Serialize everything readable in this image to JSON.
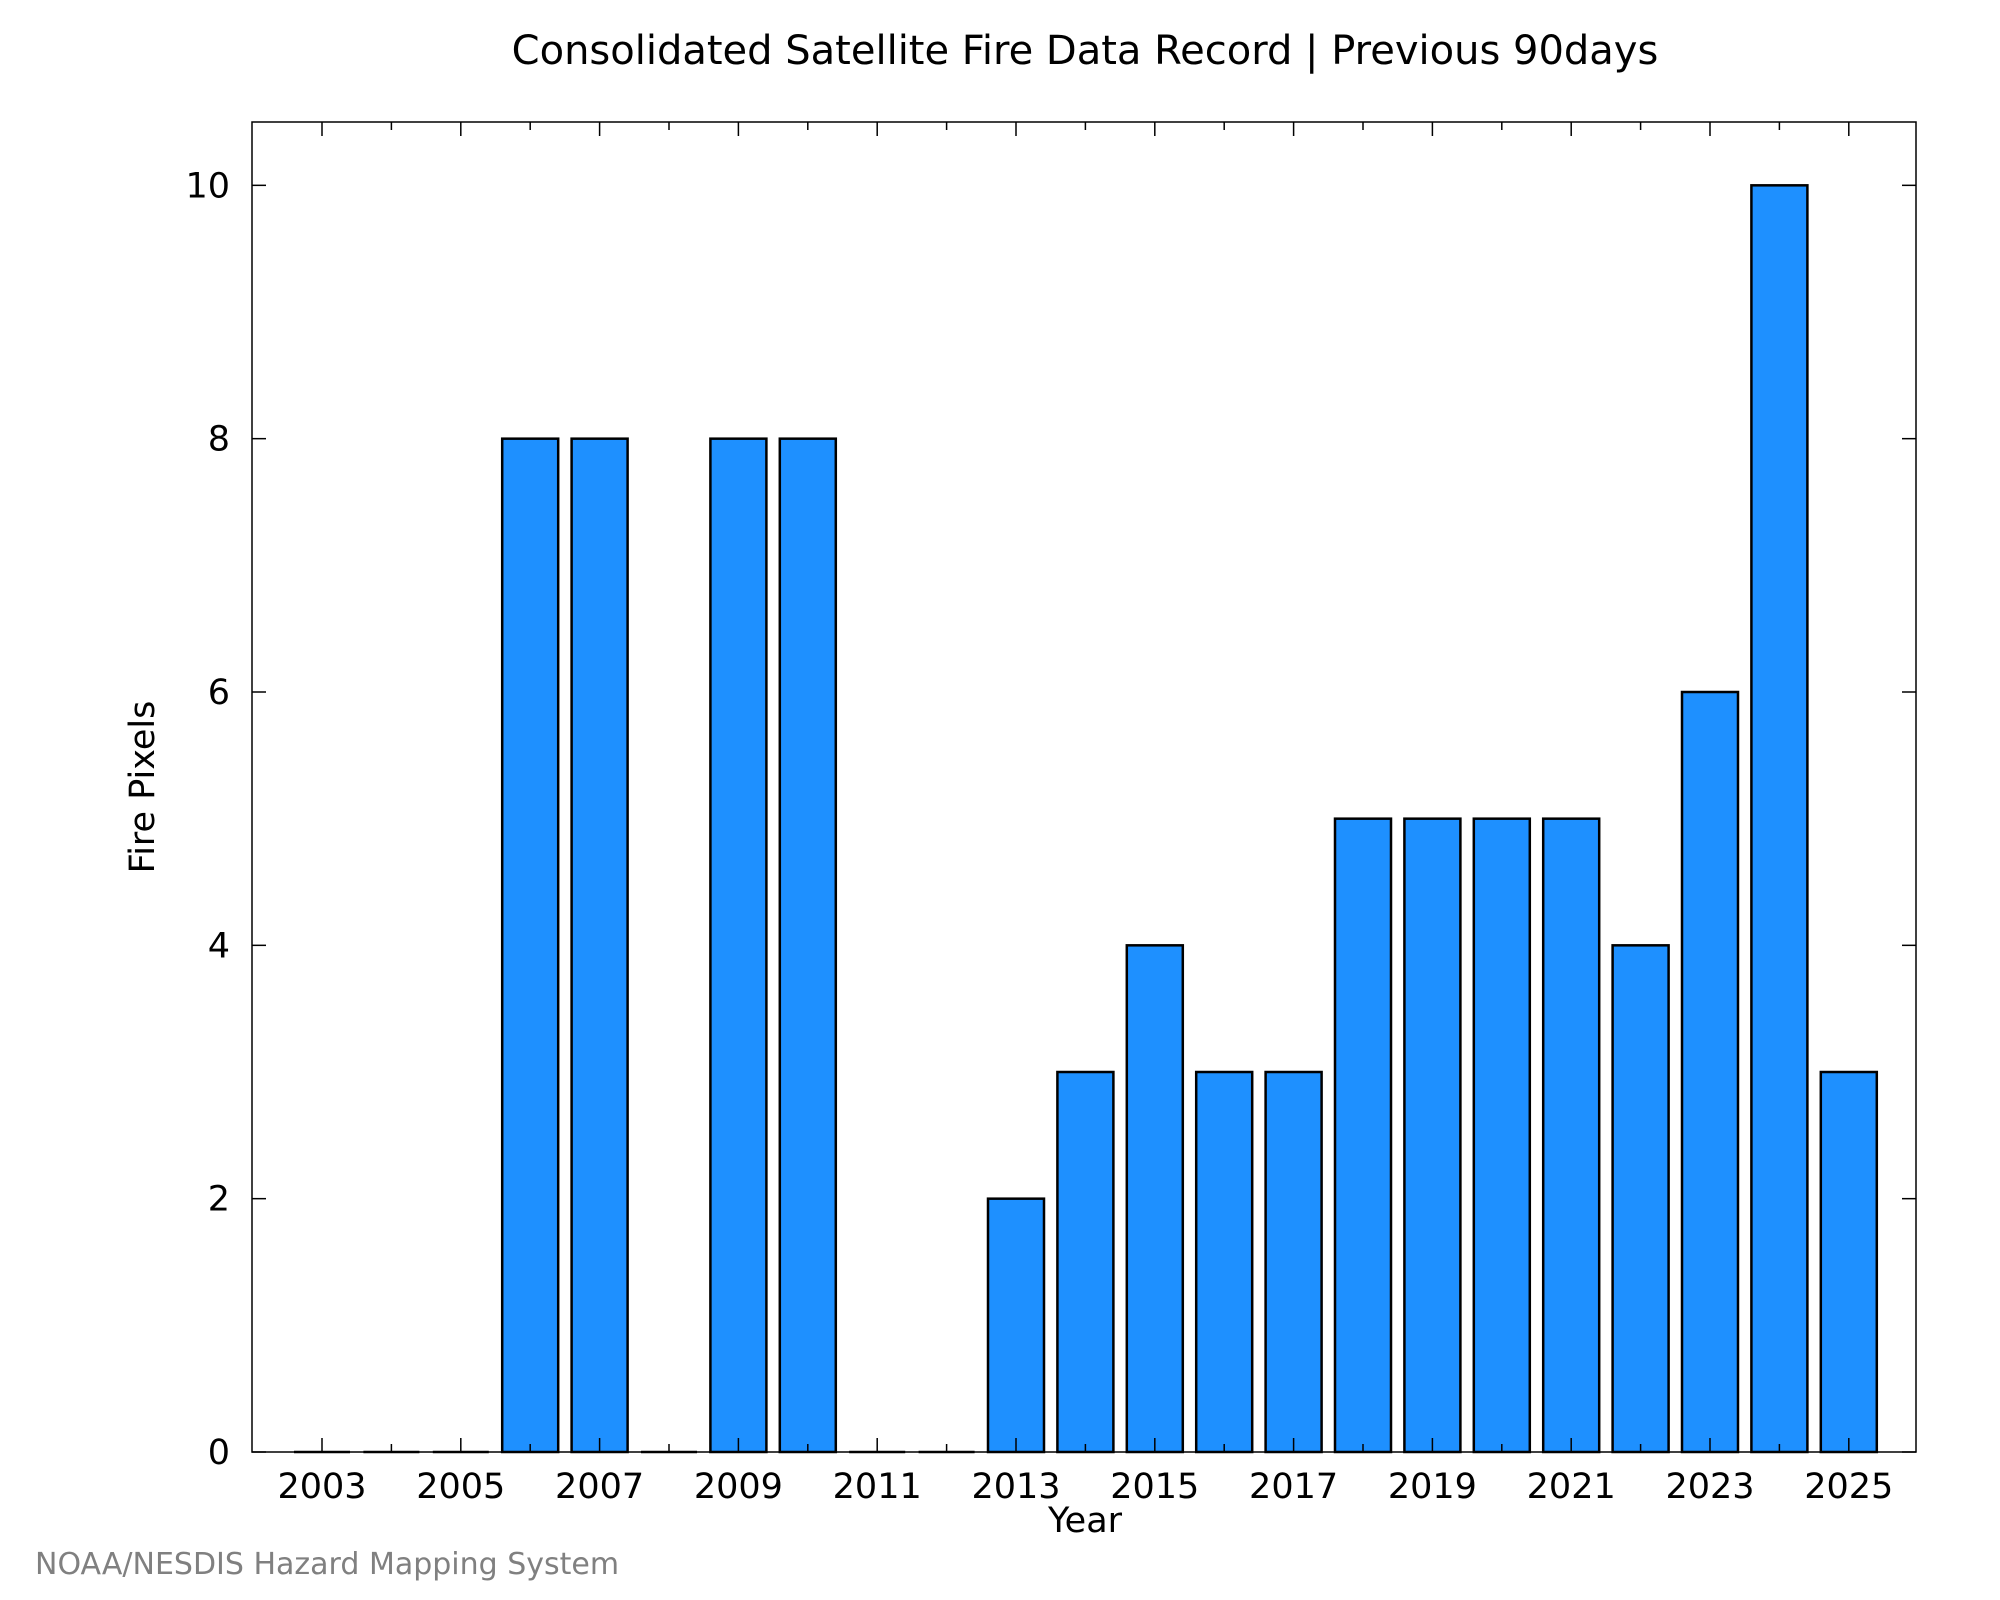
{
  "chart_data": {
    "type": "bar",
    "title": "Consolidated Satellite Fire Data Record | Previous 90days",
    "xlabel": "Year",
    "ylabel": "Fire Pixels",
    "categories": [
      "2003",
      "2004",
      "2005",
      "2006",
      "2007",
      "2008",
      "2009",
      "2010",
      "2011",
      "2012",
      "2013",
      "2014",
      "2015",
      "2016",
      "2017",
      "2018",
      "2019",
      "2020",
      "2021",
      "2022",
      "2023",
      "2024",
      "2025"
    ],
    "values": [
      0,
      0,
      0,
      8,
      8,
      0,
      8,
      8,
      0,
      0,
      2,
      3,
      4,
      3,
      3,
      5,
      5,
      5,
      5,
      4,
      6,
      10,
      3
    ],
    "x_tick_labels": [
      "2003",
      "2005",
      "2007",
      "2009",
      "2011",
      "2013",
      "2015",
      "2017",
      "2019",
      "2021",
      "2023",
      "2025"
    ],
    "y_tick_labels": [
      "0",
      "2",
      "4",
      "6",
      "8",
      "10"
    ],
    "ylim": [
      0,
      10.5
    ],
    "grid": false,
    "bar_color": "#1e90ff",
    "bar_edge_color": "#000000"
  },
  "credit": "NOAA/NESDIS Hazard Mapping System"
}
